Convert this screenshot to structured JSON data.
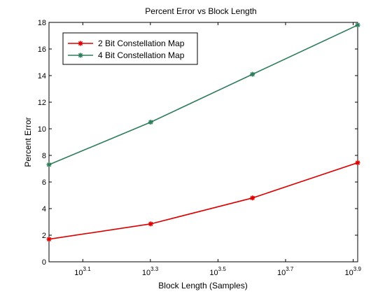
{
  "chart_data": {
    "type": "line",
    "title": "Percent Error vs Block Length",
    "xlabel": "Block Length (Samples)",
    "ylabel": "Percent Error",
    "x_scale": "log",
    "xlim": [
      1000,
      8192
    ],
    "ylim": [
      0,
      18
    ],
    "x_ticks": [
      {
        "value": 1258.93,
        "base": "10",
        "exponent": "3.1"
      },
      {
        "value": 1995.26,
        "base": "10",
        "exponent": "3.3"
      },
      {
        "value": 3162.28,
        "base": "10",
        "exponent": "3.5"
      },
      {
        "value": 5011.87,
        "base": "10",
        "exponent": "3.7"
      },
      {
        "value": 7943.28,
        "base": "10",
        "exponent": "3.9"
      }
    ],
    "y_ticks": [
      "0",
      "2",
      "4",
      "6",
      "8",
      "10",
      "12",
      "14",
      "16",
      "18"
    ],
    "grid": false,
    "legend_position": "top-left",
    "x": [
      1000,
      2000,
      4000,
      8192
    ],
    "series": [
      {
        "name": "2 Bit Constellation Map",
        "color": "#dd0000",
        "marker": "asterisk",
        "values": [
          1.7,
          2.85,
          4.8,
          7.45
        ]
      },
      {
        "name": "4 Bit Constellation Map",
        "color": "#2e7d5b",
        "marker": "asterisk",
        "values": [
          7.3,
          10.5,
          14.1,
          17.8
        ]
      }
    ]
  }
}
